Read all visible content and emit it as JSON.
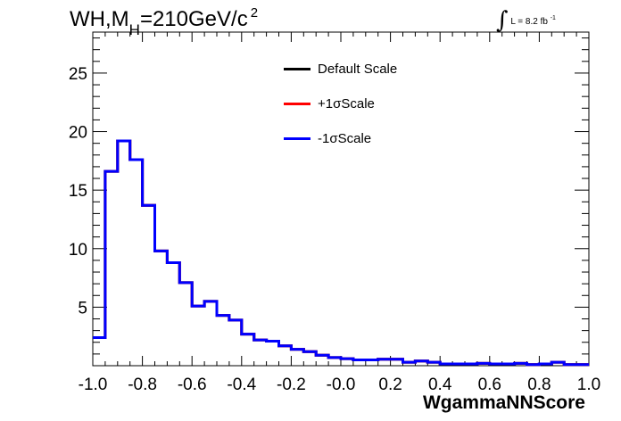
{
  "chart_data": {
    "type": "line",
    "title": "WH,M",
    "title_sub": "H",
    "title_rest": "=210GeV/c",
    "title_sup": "2",
    "lumi_prefix": "L = 8.2 fb",
    "lumi_sup": "-1",
    "xlabel": "WgammaNNScore",
    "ylabel": "",
    "xlim": [
      -1.0,
      1.0
    ],
    "ylim": [
      0,
      28.5
    ],
    "x_ticks": [
      "-1.0",
      "-0.8",
      "-0.6",
      "-0.4",
      "-0.2",
      "-0.0",
      "0.2",
      "0.4",
      "0.6",
      "0.8",
      "1.0"
    ],
    "y_ticks": [
      "5",
      "10",
      "15",
      "20",
      "25"
    ],
    "legend_position": "top-center",
    "grid": false,
    "bin_edges": [
      -1.0,
      -0.95,
      -0.9,
      -0.85,
      -0.8,
      -0.75,
      -0.7,
      -0.65,
      -0.6,
      -0.55,
      -0.5,
      -0.45,
      -0.4,
      -0.35,
      -0.3,
      -0.25,
      -0.2,
      -0.15,
      -0.1,
      -0.05,
      0.0,
      0.05,
      0.1,
      0.15,
      0.2,
      0.25,
      0.3,
      0.35,
      0.4,
      0.45,
      0.5,
      0.55,
      0.6,
      0.65,
      0.7,
      0.75,
      0.8,
      0.85,
      0.9,
      0.95,
      1.0
    ],
    "series": [
      {
        "name": "Default Scale",
        "color": "#000000",
        "values": [
          2.4,
          16.6,
          19.2,
          17.6,
          13.7,
          9.8,
          8.8,
          7.1,
          5.1,
          5.5,
          4.3,
          3.9,
          2.7,
          2.2,
          2.1,
          1.7,
          1.4,
          1.2,
          0.9,
          0.7,
          0.6,
          0.5,
          0.5,
          0.55,
          0.55,
          0.3,
          0.4,
          0.3,
          0.15,
          0.15,
          0.15,
          0.2,
          0.15,
          0.15,
          0.2,
          0.1,
          0.15,
          0.3,
          0.1,
          0.1
        ]
      },
      {
        "name": "+1σScale",
        "color": "#ff0000",
        "values": [
          2.4,
          16.6,
          19.2,
          17.6,
          13.7,
          9.8,
          8.8,
          7.1,
          5.1,
          5.5,
          4.3,
          3.9,
          2.7,
          2.2,
          2.1,
          1.7,
          1.4,
          1.2,
          0.9,
          0.7,
          0.6,
          0.5,
          0.5,
          0.55,
          0.55,
          0.3,
          0.4,
          0.3,
          0.15,
          0.15,
          0.15,
          0.2,
          0.15,
          0.15,
          0.2,
          0.1,
          0.15,
          0.3,
          0.1,
          0.1
        ]
      },
      {
        "name": "-1σScale",
        "color": "#0000ff",
        "values": [
          2.4,
          16.6,
          19.2,
          17.6,
          13.7,
          9.8,
          8.8,
          7.1,
          5.1,
          5.5,
          4.3,
          3.9,
          2.7,
          2.2,
          2.1,
          1.7,
          1.4,
          1.2,
          0.9,
          0.7,
          0.6,
          0.5,
          0.5,
          0.55,
          0.55,
          0.3,
          0.4,
          0.3,
          0.15,
          0.15,
          0.15,
          0.2,
          0.15,
          0.15,
          0.2,
          0.1,
          0.15,
          0.3,
          0.1,
          0.1
        ]
      }
    ]
  }
}
